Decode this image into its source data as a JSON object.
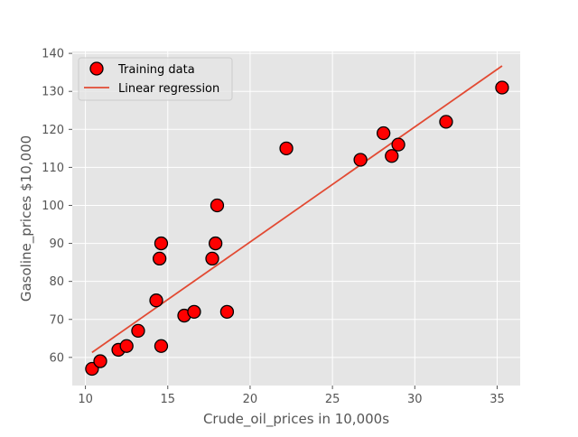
{
  "chart_data": {
    "type": "scatter",
    "title": "",
    "xlabel": "Crude_oil_prices in 10,000s",
    "ylabel": "Gasoline_prices $10,000",
    "xlim": [
      9.2,
      36.4
    ],
    "ylim": [
      52.6,
      140.5
    ],
    "xticks": [
      10,
      15,
      20,
      25,
      30,
      35
    ],
    "yticks": [
      60,
      70,
      80,
      90,
      100,
      110,
      120,
      130,
      140
    ],
    "grid": true,
    "legend": "top-left",
    "colors": {
      "background": "#e5e5e5",
      "grid": "#ffffff",
      "marker_fill": "#ff0000",
      "marker_edge": "#000000",
      "line": "#e24a33"
    },
    "series": [
      {
        "name": "Training data",
        "kind": "scatter",
        "points": [
          {
            "x": 10.4,
            "y": 57
          },
          {
            "x": 10.9,
            "y": 59
          },
          {
            "x": 12.0,
            "y": 62
          },
          {
            "x": 12.5,
            "y": 63
          },
          {
            "x": 13.2,
            "y": 67
          },
          {
            "x": 14.3,
            "y": 75
          },
          {
            "x": 14.5,
            "y": 86
          },
          {
            "x": 14.6,
            "y": 90
          },
          {
            "x": 14.6,
            "y": 63
          },
          {
            "x": 16.0,
            "y": 71
          },
          {
            "x": 16.6,
            "y": 72
          },
          {
            "x": 17.7,
            "y": 86
          },
          {
            "x": 17.9,
            "y": 90
          },
          {
            "x": 18.0,
            "y": 100
          },
          {
            "x": 18.6,
            "y": 72
          },
          {
            "x": 22.2,
            "y": 115
          },
          {
            "x": 26.7,
            "y": 112
          },
          {
            "x": 28.1,
            "y": 119
          },
          {
            "x": 28.6,
            "y": 113
          },
          {
            "x": 29.0,
            "y": 116
          },
          {
            "x": 31.9,
            "y": 122
          },
          {
            "x": 35.3,
            "y": 131
          }
        ]
      },
      {
        "name": "Linear regression",
        "kind": "line",
        "points": [
          {
            "x": 10.4,
            "y": 61.3
          },
          {
            "x": 35.3,
            "y": 136.7
          }
        ]
      }
    ]
  }
}
